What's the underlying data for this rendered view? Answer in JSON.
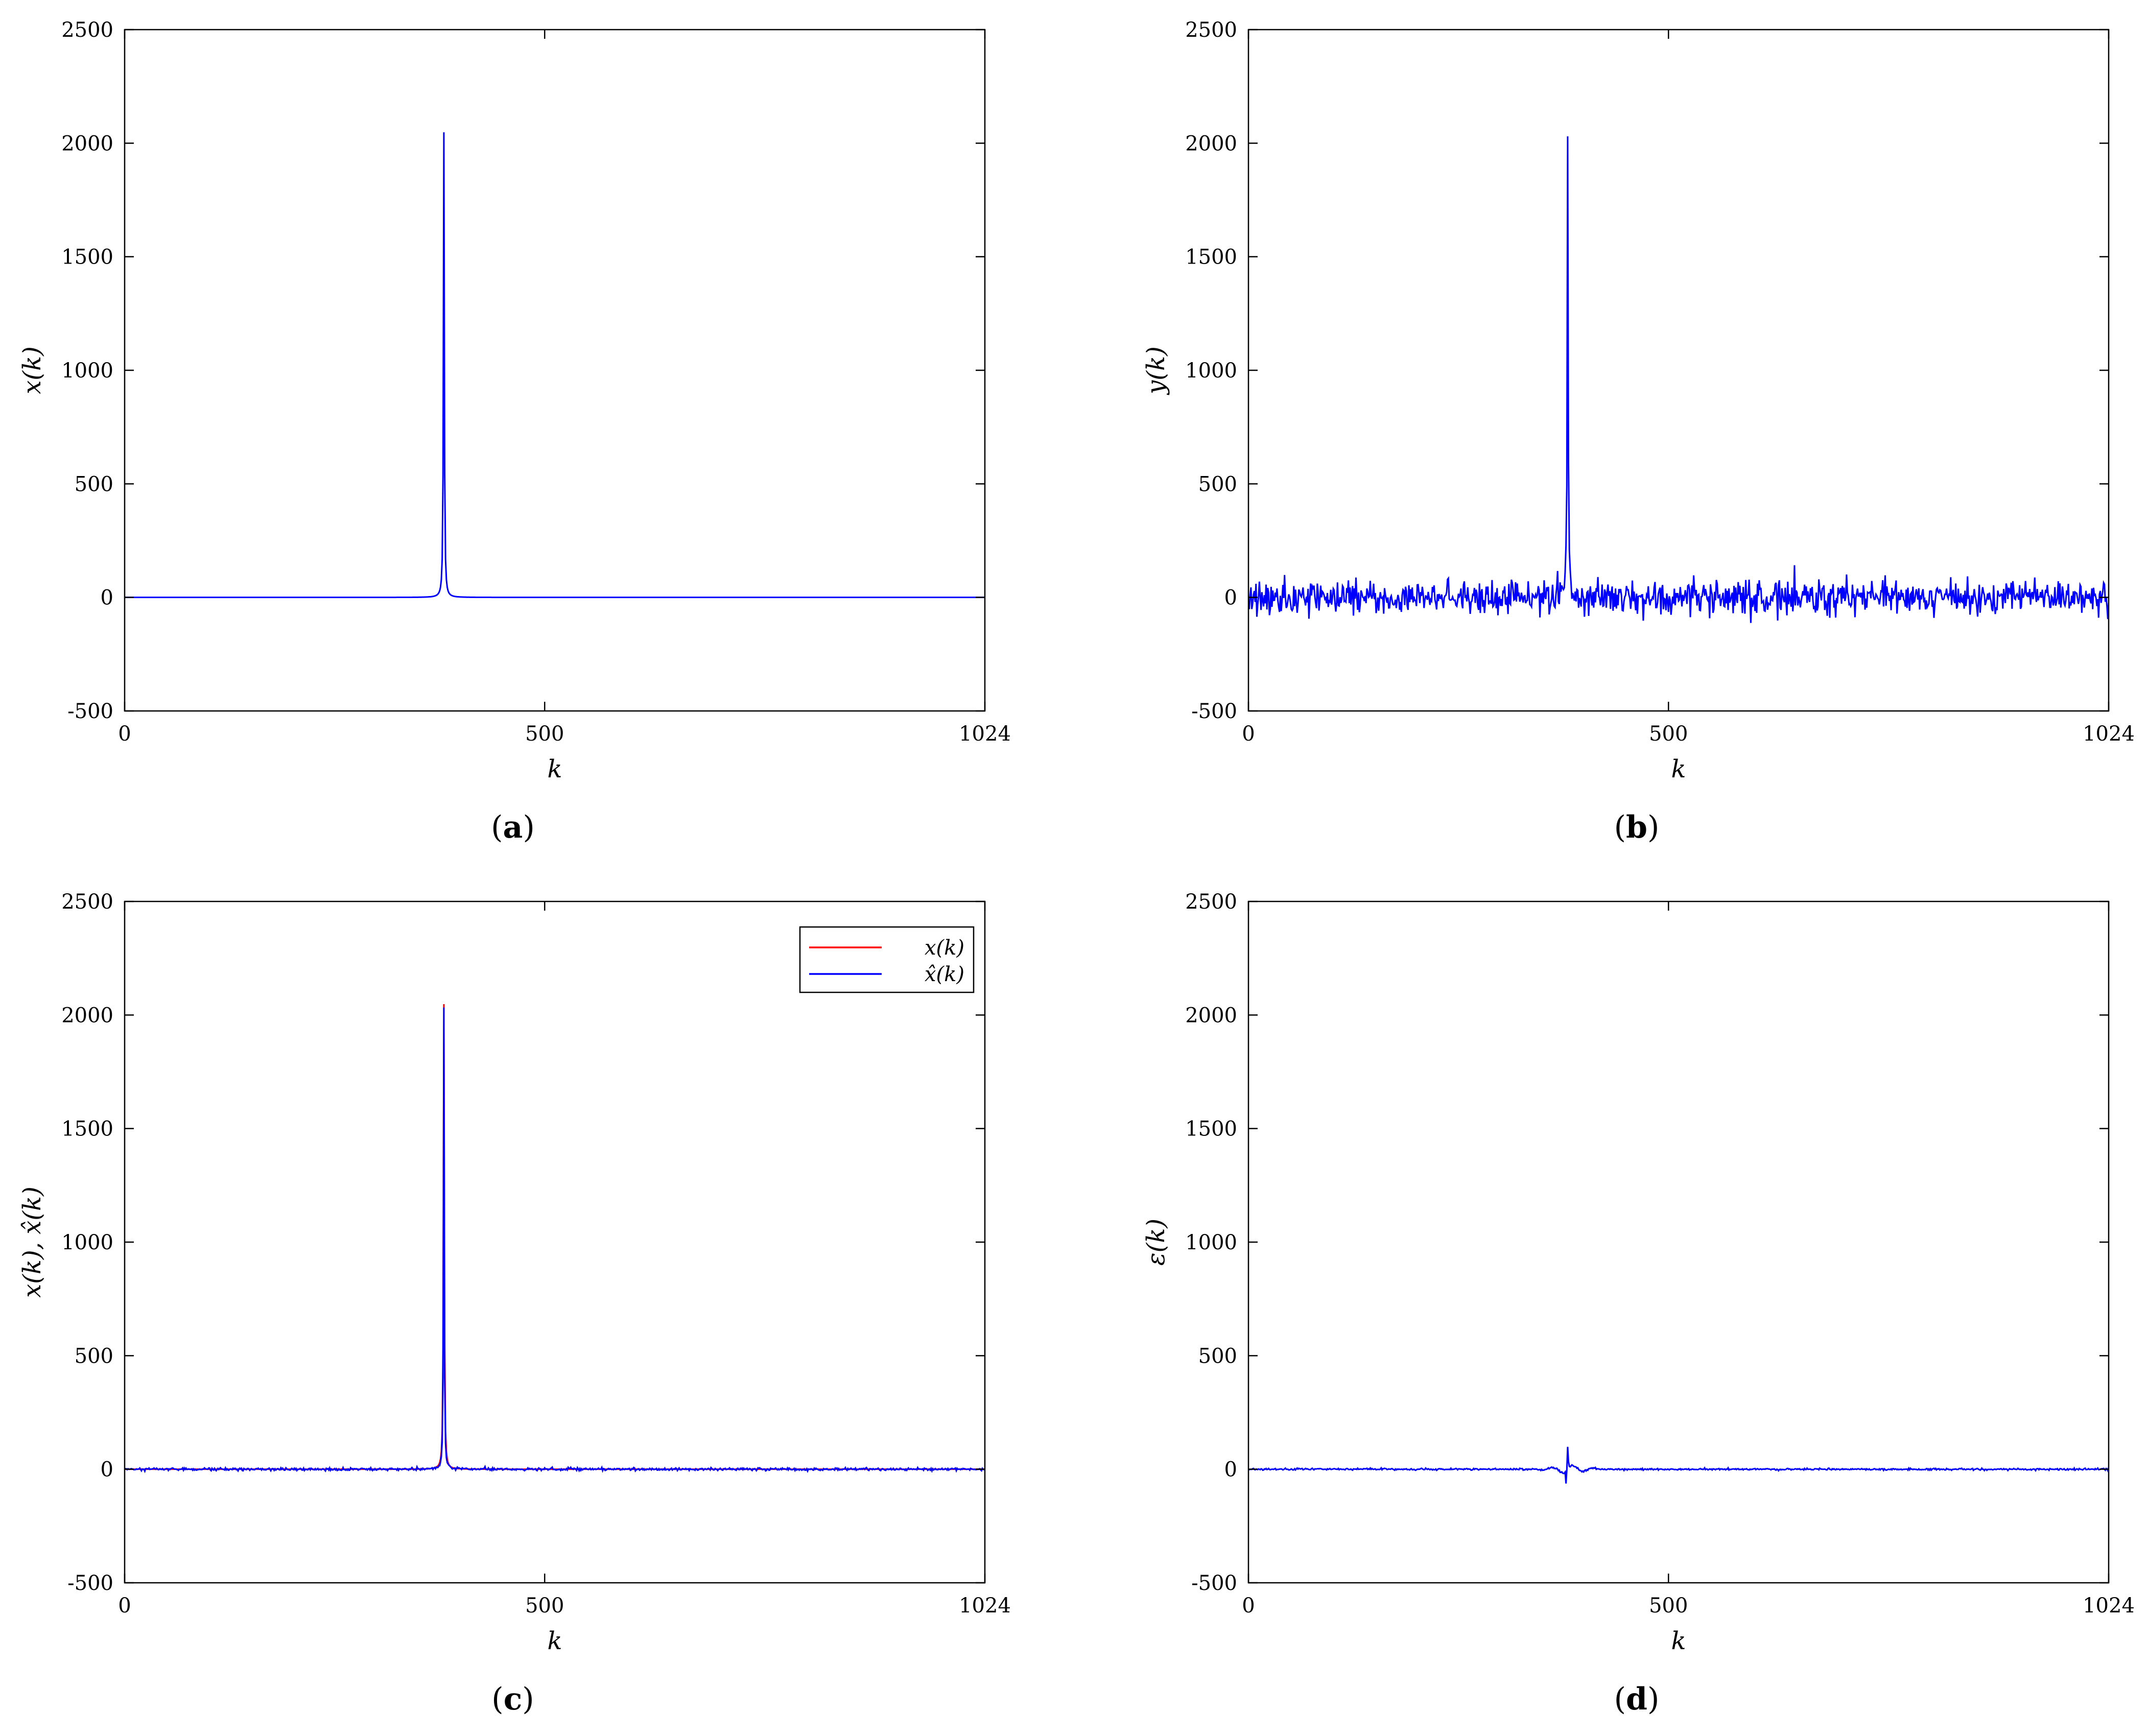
{
  "colors": {
    "x": "#ff0000",
    "y": "#0000ff",
    "axes": "#000000"
  },
  "chart_data": [
    {
      "id": "a",
      "type": "line",
      "panel_label": "a",
      "xlabel": "k",
      "ylabel": "x(k)",
      "xlim": [
        0,
        1024
      ],
      "ylim": [
        -500,
        2500
      ],
      "xticks": [
        "0",
        "500",
        "1024"
      ],
      "yticks": [
        "-500",
        "0",
        "500",
        "1000",
        "1500",
        "2000",
        "2500"
      ],
      "grid": false,
      "series": [
        {
          "color": "#0000ff",
          "kind": "lorentz",
          "peak_k": 380,
          "peak": 2048,
          "width": 0.6,
          "noise": 0,
          "seed": 1
        }
      ]
    },
    {
      "id": "b",
      "type": "line",
      "panel_label": "b",
      "xlabel": "k",
      "ylabel": "y(k)",
      "xlim": [
        0,
        1024
      ],
      "ylim": [
        -500,
        2500
      ],
      "xticks": [
        "0",
        "500",
        "1024"
      ],
      "yticks": [
        "-500",
        "0",
        "500",
        "1000",
        "1500",
        "2000",
        "2500"
      ],
      "grid": false,
      "series": [
        {
          "color": "#0000ff",
          "kind": "lorentz",
          "peak_k": 380,
          "peak": 2030,
          "width": 0.6,
          "noise": 38,
          "seed": 7
        }
      ]
    },
    {
      "id": "c",
      "type": "line",
      "panel_label": "c",
      "xlabel": "k",
      "ylabel": "x(k), x̂(k)",
      "xlim": [
        0,
        1024
      ],
      "ylim": [
        -500,
        2500
      ],
      "xticks": [
        "0",
        "500",
        "1024"
      ],
      "yticks": [
        "-500",
        "0",
        "500",
        "1000",
        "1500",
        "2000",
        "2500"
      ],
      "grid": false,
      "legend": {
        "position": "top-right",
        "entries": [
          {
            "label": "x(k)",
            "color": "#ff0000"
          },
          {
            "label": "x̂(k)",
            "color": "#0000ff"
          }
        ]
      },
      "series": [
        {
          "name": "x(k)",
          "color": "#ff0000",
          "kind": "lorentz",
          "peak_k": 380,
          "peak": 2048,
          "width": 0.6,
          "noise": 0,
          "seed": 2
        },
        {
          "name": "x̂(k)",
          "color": "#0000ff",
          "kind": "lorentz",
          "peak_k": 380,
          "peak": 2030,
          "width": 0.5,
          "noise": 3,
          "seed": 11
        }
      ]
    },
    {
      "id": "d",
      "type": "line",
      "panel_label": "d",
      "xlabel": "k",
      "ylabel": "ε(k)",
      "xlim": [
        0,
        1024
      ],
      "ylim": [
        -500,
        2500
      ],
      "xticks": [
        "0",
        "500",
        "1024"
      ],
      "yticks": [
        "-500",
        "0",
        "500",
        "1000",
        "1500",
        "2000",
        "2500"
      ],
      "grid": false,
      "series": [
        {
          "color": "#0000ff",
          "kind": "error",
          "peak_k": 380,
          "peak": 100,
          "width": 0,
          "noise": 2,
          "seed": 5
        }
      ]
    }
  ]
}
